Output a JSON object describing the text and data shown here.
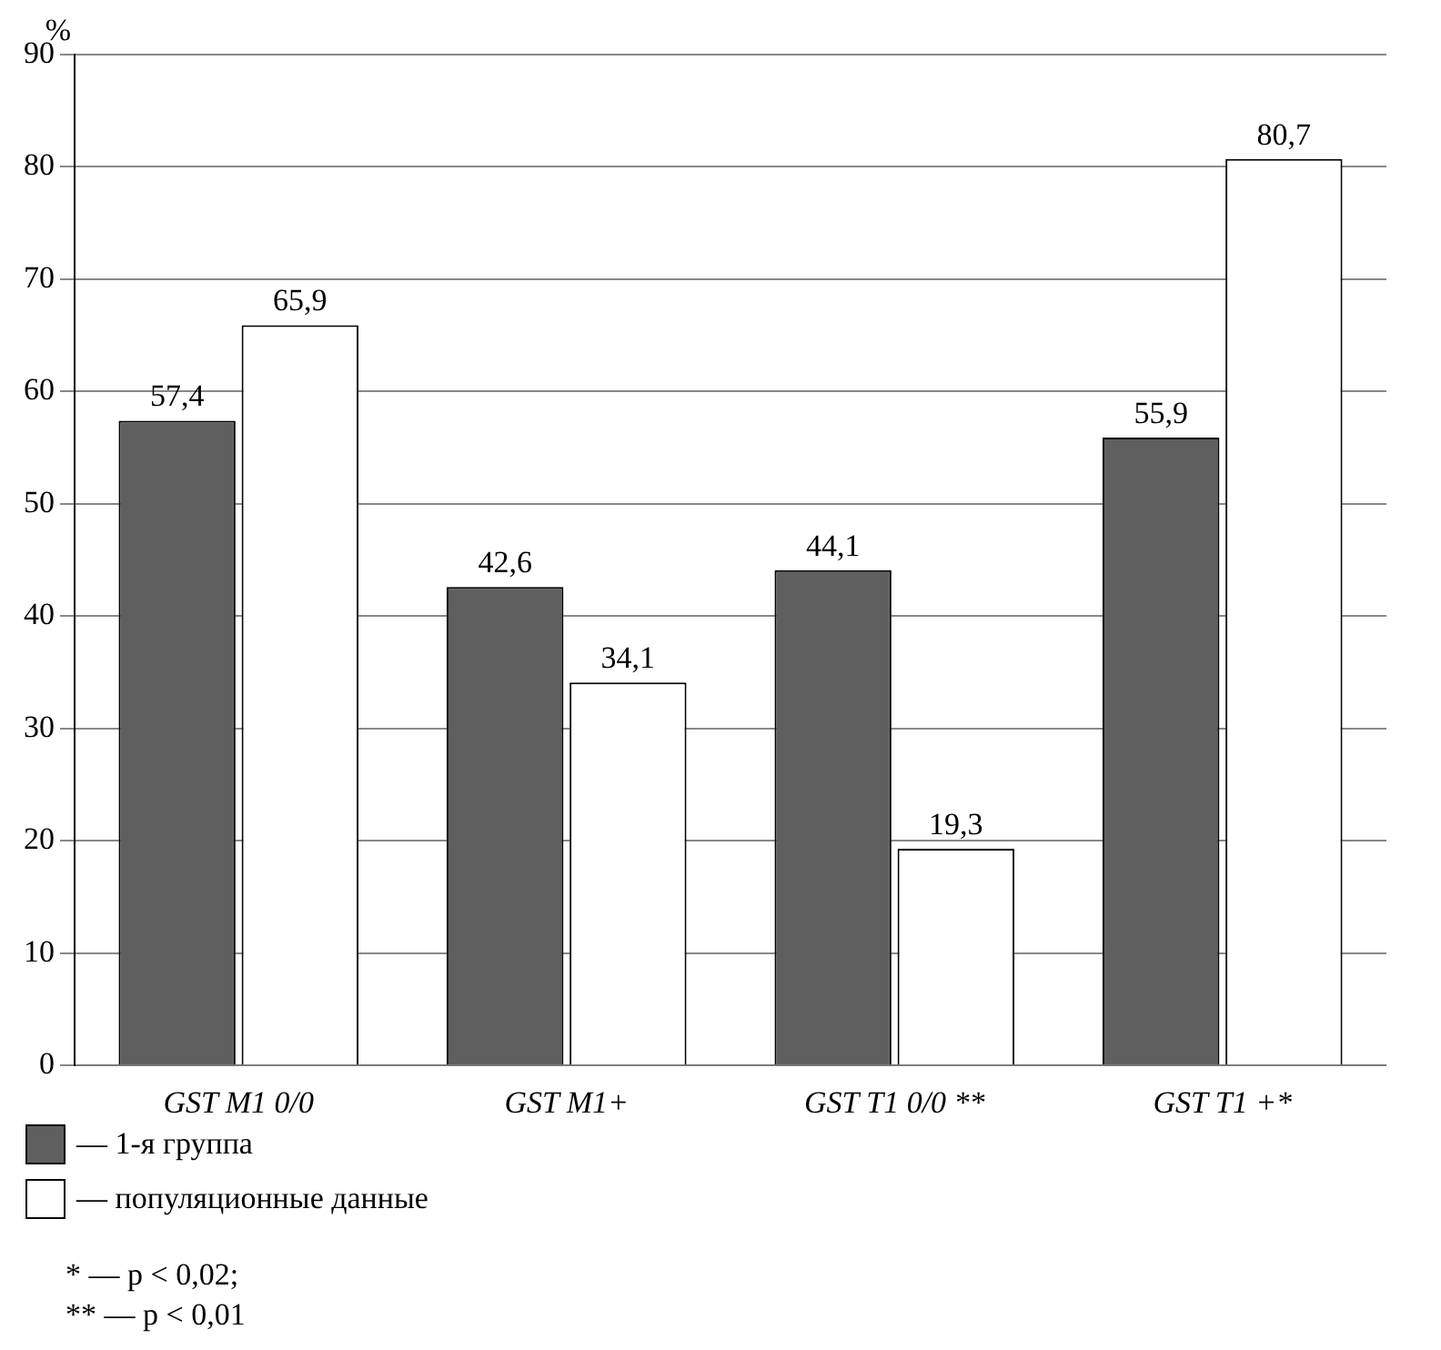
{
  "chart_data": {
    "type": "bar",
    "ylabel": "%",
    "categories": [
      "GST M1 0/0",
      "GST M1+",
      "GST T1 0/0 **",
      "GST T1 +*"
    ],
    "series": [
      {
        "name": "— 1-я группа",
        "color": "#5f5f5f",
        "values": [
          57.4,
          42.6,
          44.1,
          55.9
        ],
        "value_labels": [
          "57,4",
          "42,6",
          "44,1",
          "55,9"
        ]
      },
      {
        "name": "— популяционные данные",
        "color": "#ffffff",
        "values": [
          65.9,
          34.1,
          19.3,
          80.7
        ],
        "value_labels": [
          "65,9",
          "34,1",
          "19,3",
          "80,7"
        ]
      }
    ],
    "ylim": [
      0,
      90
    ],
    "yticks": [
      0,
      10,
      20,
      30,
      40,
      50,
      60,
      70,
      80,
      90
    ],
    "grid": "y",
    "legend": "bottom left",
    "annotations": [
      "* — p < 0,02;",
      "** — p < 0,01"
    ]
  }
}
